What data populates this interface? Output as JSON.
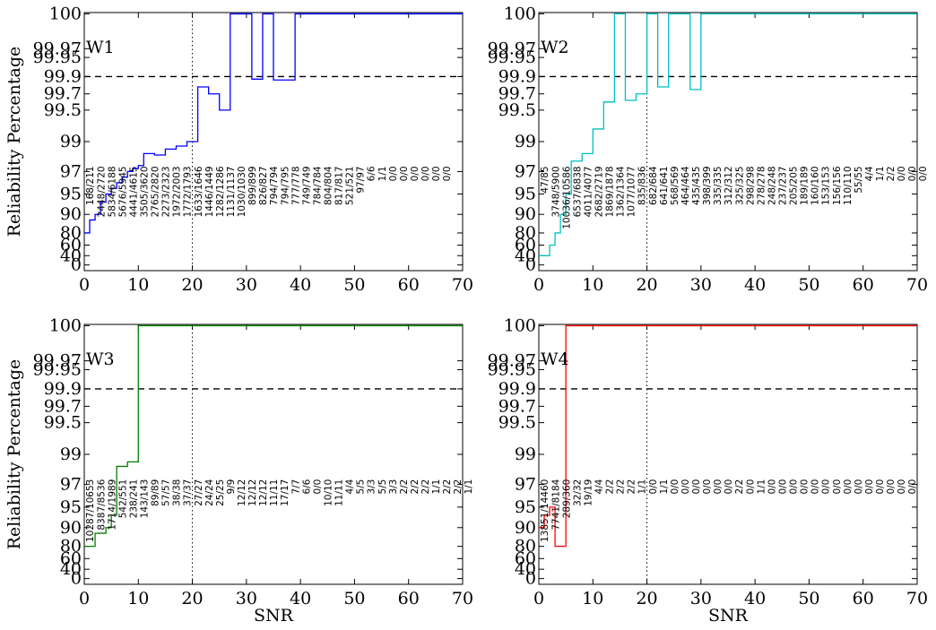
{
  "chart_data": [
    {
      "panel": "W1",
      "type": "line",
      "title": "W1",
      "color": "#0000ff",
      "xlabel": "",
      "ylabel": "Reliability Percentage",
      "xlim": [
        0,
        70
      ],
      "xticks": [
        0,
        10,
        20,
        30,
        40,
        50,
        60,
        70
      ],
      "yticks": [
        "0",
        "40",
        "60",
        "80",
        "90",
        "95",
        "97",
        "99",
        "99.5",
        "99.7",
        "99.9",
        "99.95",
        "99.97",
        "100"
      ],
      "hline": 99.9,
      "vline": 20,
      "x": [
        0,
        1,
        2,
        3,
        4,
        5,
        6,
        7,
        8,
        9,
        10,
        11,
        12,
        13,
        14,
        15,
        16,
        17,
        18,
        19,
        20,
        21,
        22,
        23,
        24,
        25,
        26,
        27,
        28,
        29,
        30,
        31,
        32,
        33,
        34,
        35,
        36,
        37,
        38,
        39,
        40,
        41,
        42,
        43,
        44,
        45,
        46,
        47,
        48,
        49,
        50,
        51,
        52,
        53,
        54,
        55,
        56,
        57,
        58,
        59,
        60,
        61,
        62,
        63,
        64,
        65,
        66,
        67,
        68,
        69,
        70
      ],
      "y": [
        80,
        87,
        90,
        93,
        95,
        95.5,
        96,
        96.5,
        97,
        97.2,
        97.4,
        98.2,
        98.2,
        98.1,
        98.1,
        98.5,
        98.5,
        98.7,
        98.7,
        99,
        99,
        99.78,
        99.78,
        99.7,
        99.7,
        99.5,
        99.5,
        100,
        100,
        100,
        100,
        99.87,
        99.87,
        100,
        100,
        99.86,
        99.86,
        99.86,
        99.86,
        100,
        100,
        100,
        100,
        100,
        100,
        100,
        100,
        100,
        100,
        100,
        100,
        100,
        100,
        100,
        100,
        100,
        100,
        100,
        100,
        100,
        100,
        100,
        100,
        100,
        100,
        100,
        100,
        100,
        100,
        100,
        100
      ],
      "annotations": [
        "168/211",
        "2448/2720",
        "5834/6188",
        "5676/5945",
        "4441/4615",
        "3505/3620",
        "2765/2820",
        "2273/2323",
        "1972/2003",
        "1772/1793",
        "1633/1646",
        "1446/1449",
        "1282/1286",
        "1131/1137",
        "1030/1030",
        "899/899",
        "826/827",
        "794/794",
        "794/795",
        "777/778",
        "749/749",
        "784/784",
        "804/804",
        "817/817",
        "521/521",
        "97/97",
        "6/6",
        "1/1",
        "0/0",
        "0/0",
        "0/0",
        "0/0",
        "0/0",
        "0/0"
      ]
    },
    {
      "panel": "W2",
      "type": "line",
      "title": "W2",
      "color": "#00bfbf",
      "xlabel": "",
      "ylabel": "",
      "xlim": [
        0,
        70
      ],
      "xticks": [
        0,
        10,
        20,
        30,
        40,
        50,
        60,
        70
      ],
      "yticks": [
        "0",
        "40",
        "60",
        "80",
        "90",
        "95",
        "97",
        "99",
        "99.5",
        "99.7",
        "99.9",
        "99.95",
        "99.97",
        "100"
      ],
      "hline": 99.9,
      "vline": 20,
      "x": [
        0,
        1,
        2,
        3,
        4,
        5,
        6,
        7,
        8,
        9,
        10,
        11,
        12,
        13,
        14,
        15,
        16,
        17,
        18,
        19,
        20,
        21,
        22,
        23,
        24,
        25,
        26,
        27,
        28,
        29,
        30,
        31,
        32,
        33,
        34,
        35,
        36,
        37,
        38,
        39,
        40,
        41,
        42,
        43,
        44,
        45,
        46,
        47,
        48,
        49,
        50,
        51,
        52,
        53,
        54,
        55,
        56,
        57,
        58,
        59,
        60,
        61,
        62,
        63,
        64,
        65,
        66,
        67,
        68,
        69,
        70
      ],
      "y": [
        40,
        40,
        60,
        80,
        90,
        95,
        97.7,
        97.7,
        98.2,
        98.2,
        99.2,
        99.2,
        99.6,
        99.6,
        100,
        100,
        99.62,
        99.62,
        99.7,
        99.7,
        100,
        100,
        99.78,
        99.78,
        100,
        100,
        100,
        100,
        99.75,
        99.75,
        100,
        100,
        100,
        100,
        100,
        100,
        100,
        100,
        100,
        100,
        100,
        100,
        100,
        100,
        100,
        100,
        100,
        100,
        100,
        100,
        100,
        100,
        100,
        100,
        100,
        100,
        100,
        100,
        100,
        100,
        100,
        100,
        100,
        100,
        100,
        100,
        100,
        100,
        100,
        100,
        100
      ],
      "annotations": [
        "47/85",
        "3748/5900",
        "10036/10586",
        "6537/6838",
        "4011/4077",
        "2682/2719",
        "1869/1878",
        "1362/1364",
        "1077/1077",
        "835/836",
        "682/684",
        "641/641",
        "568/569",
        "464/464",
        "435/435",
        "398/399",
        "335/335",
        "312/312",
        "325/325",
        "298/298",
        "278/278",
        "248/248",
        "237/237",
        "205/205",
        "189/189",
        "160/160",
        "153/153",
        "156/156",
        "110/110",
        "55/55",
        "4/4",
        "1/1",
        "2/2",
        "0/0",
        "0/0",
        "0/0"
      ]
    },
    {
      "panel": "W3",
      "type": "line",
      "title": "W3",
      "color": "#008000",
      "xlabel": "SNR",
      "ylabel": "Reliability Percentage",
      "xlim": [
        0,
        70
      ],
      "xticks": [
        0,
        10,
        20,
        30,
        40,
        50,
        60,
        70
      ],
      "yticks": [
        "0",
        "40",
        "60",
        "80",
        "90",
        "95",
        "97",
        "99",
        "99.5",
        "99.7",
        "99.9",
        "99.95",
        "99.97",
        "100"
      ],
      "hline": 99.9,
      "vline": 20,
      "x": [
        0,
        1,
        2,
        3,
        4,
        5,
        6,
        7,
        8,
        9,
        10,
        11,
        12,
        13,
        14,
        15,
        16,
        17,
        18,
        19,
        20,
        21,
        22,
        23,
        24,
        25,
        26,
        27,
        28,
        29,
        30,
        31,
        32,
        33,
        34,
        35,
        36,
        37,
        38,
        39,
        40,
        41,
        42,
        43,
        44,
        45,
        46,
        47,
        48,
        49,
        50,
        51,
        52,
        53,
        54,
        55,
        56,
        57,
        58,
        59,
        60,
        61,
        62,
        63,
        64,
        65,
        66,
        67,
        68,
        69,
        70
      ],
      "y": [
        80,
        80,
        87,
        87,
        90,
        93,
        98.2,
        98.2,
        98.5,
        98.5,
        100,
        100,
        100,
        100,
        100,
        100,
        100,
        100,
        100,
        100,
        100,
        100,
        100,
        100,
        100,
        100,
        100,
        100,
        100,
        100,
        100,
        100,
        100,
        100,
        100,
        100,
        100,
        100,
        100,
        100,
        100,
        100,
        100,
        100,
        100,
        100,
        100,
        100,
        100,
        100,
        100,
        100,
        100,
        100,
        100,
        100,
        100,
        100,
        100,
        100,
        100,
        100,
        100,
        100,
        100,
        100,
        100,
        100,
        100,
        100,
        100
      ],
      "annotations": [
        "10287/10653",
        "8387/8536",
        "1714/1989",
        "542/551",
        "238/241",
        "143/143",
        "89/89",
        "57/57",
        "38/38",
        "37/37",
        "27/27",
        "24/24",
        "25/25",
        "9/9",
        "12/12",
        "12/12",
        "12/12",
        "11/11",
        "17/17",
        "7/7",
        "6/6",
        "0/0",
        "10/10",
        "11/11",
        "4/4",
        "5/5",
        "3/3",
        "5/5",
        "3/3",
        "2/2",
        "2/2",
        "2/2",
        "1/1",
        "2/2",
        "2/2",
        "1/1"
      ]
    },
    {
      "panel": "W4",
      "type": "line",
      "title": "W4",
      "color": "#ff0000",
      "xlabel": "SNR",
      "ylabel": "",
      "xlim": [
        0,
        70
      ],
      "xticks": [
        0,
        10,
        20,
        30,
        40,
        50,
        60,
        70
      ],
      "yticks": [
        "0",
        "40",
        "60",
        "80",
        "90",
        "95",
        "97",
        "99",
        "99.5",
        "99.7",
        "99.9",
        "99.95",
        "99.97",
        "100"
      ],
      "hline": 99.9,
      "vline": 20,
      "x": [
        0,
        1,
        2,
        3,
        4,
        5,
        6,
        7,
        8,
        9,
        10,
        11,
        12,
        13,
        14,
        15,
        16,
        17,
        18,
        19,
        20,
        21,
        22,
        23,
        24,
        25,
        26,
        27,
        28,
        29,
        30,
        31,
        32,
        33,
        34,
        35,
        36,
        37,
        38,
        39,
        40,
        41,
        42,
        43,
        44,
        45,
        46,
        47,
        48,
        49,
        50,
        51,
        52,
        53,
        54,
        55,
        56,
        57,
        58,
        59,
        60,
        61,
        62,
        63,
        64,
        65,
        66,
        67,
        68,
        69,
        70
      ],
      "y": [
        90,
        93,
        95,
        80,
        80,
        100,
        100,
        100,
        100,
        100,
        100,
        100,
        100,
        100,
        100,
        100,
        100,
        100,
        100,
        100,
        100,
        100,
        100,
        100,
        100,
        100,
        100,
        100,
        100,
        100,
        100,
        100,
        100,
        100,
        100,
        100,
        100,
        100,
        100,
        100,
        100,
        100,
        100,
        100,
        100,
        100,
        100,
        100,
        100,
        100,
        100,
        100,
        100,
        100,
        100,
        100,
        100,
        100,
        100,
        100,
        100,
        100,
        100,
        100,
        100,
        100,
        100,
        100,
        100,
        100,
        100
      ],
      "annotations": [
        "13851/14460",
        "7741/8184",
        "289/360",
        "32/32",
        "19/19",
        "4/4",
        "2/2",
        "2/2",
        "2/2",
        "1/1",
        "0/0",
        "1/1",
        "0/0",
        "0/0",
        "0/0",
        "0/0",
        "0/0",
        "0/0",
        "2/2",
        "0/0",
        "1/1",
        "0/0",
        "0/0",
        "0/0",
        "0/0",
        "0/0",
        "0/0",
        "0/0",
        "0/0",
        "0/0",
        "0/0",
        "0/0",
        "0/0",
        "0/0",
        "0/0"
      ]
    }
  ]
}
